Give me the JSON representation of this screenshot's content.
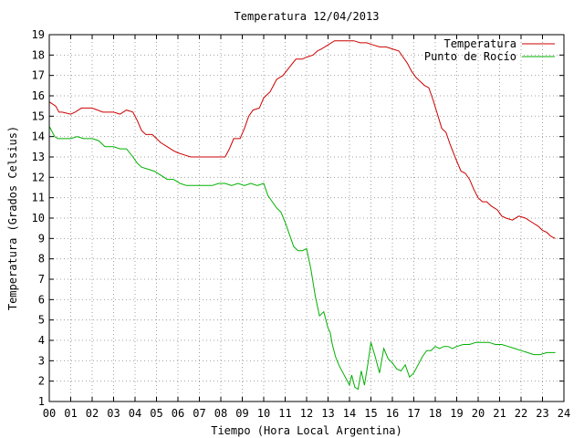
{
  "chart_data": {
    "type": "line",
    "title": "Temperatura 12/04/2013",
    "xlabel": "Tiempo (Hora Local Argentina)",
    "ylabel": "Temperatura (Grados Celsius)",
    "xlim": [
      0,
      24
    ],
    "ylim": [
      1,
      19
    ],
    "xticks": [
      "00",
      "01",
      "02",
      "03",
      "04",
      "05",
      "06",
      "07",
      "08",
      "09",
      "10",
      "11",
      "12",
      "13",
      "14",
      "15",
      "16",
      "17",
      "18",
      "19",
      "20",
      "21",
      "22",
      "23",
      "24"
    ],
    "yticks": [
      1,
      2,
      3,
      4,
      5,
      6,
      7,
      8,
      9,
      10,
      11,
      12,
      13,
      14,
      15,
      16,
      17,
      18,
      19
    ],
    "grid": true,
    "legend_position": "top-right",
    "colors": {
      "temperatura": "#cc0000",
      "punto_de_rocio": "#00b000"
    },
    "series": [
      {
        "name": "Temperatura",
        "x": [
          0.0,
          0.15,
          0.3,
          0.45,
          0.6,
          1.0,
          1.2,
          1.5,
          2.0,
          2.5,
          3.0,
          3.3,
          3.6,
          3.9,
          4.1,
          4.3,
          4.5,
          4.8,
          5.0,
          5.2,
          5.5,
          5.8,
          6.0,
          6.3,
          6.6,
          6.9,
          7.2,
          7.5,
          7.8,
          8.0,
          8.2,
          8.4,
          8.6,
          8.9,
          9.1,
          9.3,
          9.5,
          9.8,
          10.0,
          10.3,
          10.6,
          10.9,
          11.2,
          11.5,
          11.8,
          12.0,
          12.3,
          12.5,
          12.7,
          13.0,
          13.3,
          13.6,
          13.9,
          14.2,
          14.5,
          14.8,
          15.1,
          15.4,
          15.7,
          16.0,
          16.3,
          16.5,
          16.7,
          16.9,
          17.1,
          17.3,
          17.5,
          17.7,
          17.9,
          18.1,
          18.3,
          18.5,
          18.7,
          19.0,
          19.2,
          19.4,
          19.6,
          19.8,
          20.0,
          20.2,
          20.4,
          20.6,
          20.9,
          21.1,
          21.3,
          21.6,
          21.9,
          22.2,
          22.5,
          22.8,
          23.0,
          23.2,
          23.4,
          23.6
        ],
        "y": [
          15.7,
          15.6,
          15.5,
          15.2,
          15.2,
          15.1,
          15.2,
          15.4,
          15.4,
          15.2,
          15.2,
          15.1,
          15.3,
          15.2,
          14.8,
          14.3,
          14.1,
          14.1,
          13.9,
          13.7,
          13.5,
          13.3,
          13.2,
          13.1,
          13.0,
          13.0,
          13.0,
          13.0,
          13.0,
          13.0,
          13.0,
          13.4,
          13.9,
          13.9,
          14.4,
          15.0,
          15.3,
          15.4,
          15.9,
          16.2,
          16.8,
          17.0,
          17.4,
          17.8,
          17.8,
          17.9,
          18.0,
          18.2,
          18.3,
          18.5,
          18.7,
          18.7,
          18.7,
          18.7,
          18.6,
          18.6,
          18.5,
          18.4,
          18.4,
          18.3,
          18.2,
          17.9,
          17.6,
          17.2,
          16.9,
          16.7,
          16.5,
          16.4,
          15.8,
          15.1,
          14.4,
          14.2,
          13.6,
          12.8,
          12.3,
          12.2,
          11.9,
          11.4,
          11.0,
          10.8,
          10.8,
          10.6,
          10.4,
          10.1,
          10.0,
          9.9,
          10.1,
          10.0,
          9.8,
          9.6,
          9.4,
          9.3,
          9.1,
          9.0
        ]
      },
      {
        "name": "Punto de Rocío",
        "x": [
          0.0,
          0.1,
          0.25,
          0.4,
          0.6,
          1.0,
          1.3,
          1.6,
          2.0,
          2.3,
          2.6,
          3.0,
          3.3,
          3.6,
          3.9,
          4.1,
          4.3,
          4.6,
          4.9,
          5.2,
          5.5,
          5.8,
          6.1,
          6.4,
          6.7,
          7.0,
          7.3,
          7.6,
          7.9,
          8.2,
          8.5,
          8.8,
          9.1,
          9.4,
          9.7,
          10.0,
          10.2,
          10.4,
          10.6,
          10.8,
          11.0,
          11.2,
          11.4,
          11.6,
          11.8,
          12.0,
          12.2,
          12.4,
          12.6,
          12.8,
          13.0,
          13.1,
          13.2,
          13.35,
          13.5,
          13.6,
          13.7,
          13.85,
          14.0,
          14.1,
          14.25,
          14.4,
          14.55,
          14.7,
          14.85,
          15.0,
          15.2,
          15.4,
          15.6,
          15.8,
          16.0,
          16.2,
          16.4,
          16.6,
          16.8,
          17.0,
          17.2,
          17.4,
          17.6,
          17.8,
          18.0,
          18.2,
          18.4,
          18.6,
          18.8,
          19.0,
          19.3,
          19.6,
          19.9,
          20.2,
          20.5,
          20.8,
          21.1,
          21.4,
          21.7,
          22.0,
          22.3,
          22.6,
          22.9,
          23.2,
          23.5,
          23.6
        ],
        "y": [
          14.5,
          14.3,
          14.0,
          13.9,
          13.9,
          13.9,
          14.0,
          13.9,
          13.9,
          13.8,
          13.5,
          13.5,
          13.4,
          13.4,
          13.0,
          12.7,
          12.5,
          12.4,
          12.3,
          12.1,
          11.9,
          11.9,
          11.7,
          11.6,
          11.6,
          11.6,
          11.6,
          11.6,
          11.7,
          11.7,
          11.6,
          11.7,
          11.6,
          11.7,
          11.6,
          11.7,
          11.1,
          10.8,
          10.5,
          10.3,
          9.8,
          9.2,
          8.6,
          8.4,
          8.4,
          8.5,
          7.5,
          6.2,
          5.2,
          5.4,
          4.6,
          4.4,
          3.8,
          3.2,
          2.8,
          2.6,
          2.4,
          2.1,
          1.8,
          2.3,
          1.7,
          1.6,
          2.5,
          1.8,
          2.8,
          3.9,
          3.2,
          2.4,
          3.6,
          3.1,
          2.9,
          2.6,
          2.5,
          2.8,
          2.2,
          2.4,
          2.8,
          3.2,
          3.5,
          3.5,
          3.7,
          3.6,
          3.7,
          3.7,
          3.6,
          3.7,
          3.8,
          3.8,
          3.9,
          3.9,
          3.9,
          3.8,
          3.8,
          3.7,
          3.6,
          3.5,
          3.4,
          3.3,
          3.3,
          3.4,
          3.4,
          3.4
        ]
      }
    ]
  }
}
